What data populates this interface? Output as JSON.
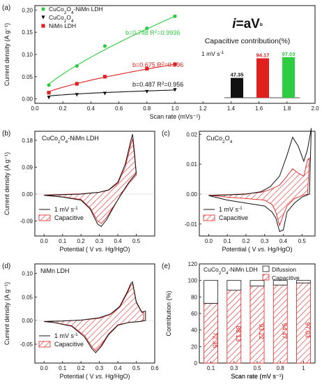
{
  "figure": {
    "colors": {
      "green": "#2ecc40",
      "red": "#e0201e",
      "black": "#111111",
      "hatch": "#e0201e"
    },
    "formula": {
      "main": "i=aV",
      "sup": "b"
    },
    "inset_title": "Capacitive contribution(%)",
    "inset_unit": "1 mV s⁻¹"
  },
  "chart_data": [
    {
      "id": "a",
      "panel_label": "(a)",
      "type": "scatter",
      "xlabel": "Scan rate (mVs⁻¹)",
      "ylabel": "Current density (A g⁻¹)",
      "xlim": [
        0.0,
        2.0
      ],
      "ylim": [
        -0.01,
        0.21
      ],
      "xticks": [
        0.0,
        0.2,
        0.4,
        0.6,
        0.8,
        1.0,
        1.2,
        1.4,
        1.6,
        1.8,
        2.0
      ],
      "xtick_labels": [
        "0.0",
        "0.2",
        "0.4",
        "0.6",
        "0.8",
        "1.0",
        "1.2",
        "1.4",
        "1.6",
        "1.8",
        "2.0"
      ],
      "yticks": [
        0.0,
        0.05,
        0.1,
        0.15,
        0.2
      ],
      "ytick_labels": [
        "0.00",
        "0.05",
        "0.10",
        "0.15",
        "0.20"
      ],
      "series": [
        {
          "name": "CuCo2O4-NiMn LDH",
          "color": "#2ecc40",
          "marker": "circle",
          "x": [
            0.1,
            0.3,
            0.5,
            0.8,
            1.0
          ],
          "y": [
            0.031,
            0.074,
            0.119,
            0.159,
            0.186
          ],
          "b": 0.748,
          "fit_label": "b=0.748 R²=0.9936"
        },
        {
          "name": "CuCo2O4",
          "color": "#111111",
          "marker": "triangle",
          "x": [
            0.1,
            0.3,
            0.5,
            0.8,
            1.0
          ],
          "y": [
            0.003,
            0.009,
            0.012,
            0.016,
            0.02
          ],
          "b": 0.487,
          "fit_label": "b=0.487 R²=0.956"
        },
        {
          "name": "NiMn LDH",
          "color": "#e0201e",
          "marker": "square",
          "x": [
            0.1,
            0.3,
            0.5,
            0.8,
            1.0
          ],
          "y": [
            0.014,
            0.034,
            0.05,
            0.068,
            0.078
          ],
          "b": 0.675,
          "fit_label": "b=0.675 R²=0.996"
        }
      ],
      "legend": [
        {
          "main": "CuCo",
          "s1": "2",
          "mid": "O",
          "s2": "4",
          "tail": "-NiMn LDH",
          "color": "#2ecc40",
          "marker": "circle"
        },
        {
          "main": "CuCo",
          "s1": "2",
          "mid": "O",
          "s2": "4",
          "tail": "",
          "color": "#111111",
          "marker": "triangle"
        },
        {
          "main": "NiMn LDH",
          "s1": "",
          "mid": "",
          "s2": "",
          "tail": "",
          "color": "#e0201e",
          "marker": "square"
        }
      ],
      "inset_bars": {
        "type": "bar",
        "values": [
          47.35,
          94.17,
          97.03
        ],
        "labels": [
          "47.35",
          "94.17",
          "97.03"
        ],
        "colors": [
          "#111111",
          "#e0201e",
          "#2ecc40"
        ],
        "label_colors": [
          "#111111",
          "#e0201e",
          "#2ecc40"
        ],
        "ylim": [
          0,
          100
        ]
      }
    },
    {
      "id": "b",
      "panel_label": "(b)",
      "type": "line",
      "title": "CuCo2O4-NiMn LDH",
      "xlabel": "Potential ( V vs. Hg/HgO)",
      "ylabel": "Current density (A g⁻¹)",
      "xlim": [
        -0.05,
        0.6
      ],
      "ylim": [
        -0.14,
        0.21
      ],
      "xticks": [
        0.0,
        0.1,
        0.2,
        0.3,
        0.4,
        0.5
      ],
      "xtick_labels": [
        "0.0",
        "0.1",
        "0.2",
        "0.3",
        "0.4",
        "0.5"
      ],
      "yticks": [
        -0.09,
        0.0,
        0.09,
        0.18
      ],
      "ytick_labels": [
        "-0.09",
        "0.00",
        "0.09",
        "0.18"
      ],
      "legend": [
        "1 mV s⁻¹",
        "Capacitive"
      ],
      "cv_total": {
        "forward": [
          [
            0.0,
            -0.004
          ],
          [
            0.1,
            -0.002
          ],
          [
            0.2,
            0.0
          ],
          [
            0.3,
            0.006
          ],
          [
            0.35,
            0.014
          ],
          [
            0.4,
            0.04
          ],
          [
            0.44,
            0.1
          ],
          [
            0.47,
            0.178
          ],
          [
            0.48,
            0.2
          ],
          [
            0.49,
            0.14
          ],
          [
            0.5,
            0.07
          ]
        ],
        "reverse": [
          [
            0.5,
            0.07
          ],
          [
            0.46,
            0.04
          ],
          [
            0.42,
            0.002
          ],
          [
            0.38,
            -0.04
          ],
          [
            0.34,
            -0.085
          ],
          [
            0.31,
            -0.108
          ],
          [
            0.29,
            -0.1
          ],
          [
            0.25,
            -0.05
          ],
          [
            0.2,
            -0.02
          ],
          [
            0.1,
            -0.01
          ],
          [
            0.0,
            -0.004
          ]
        ]
      },
      "cv_capacitive": {
        "forward": [
          [
            0.0,
            -0.003
          ],
          [
            0.1,
            -0.001
          ],
          [
            0.2,
            0.001
          ],
          [
            0.3,
            0.006
          ],
          [
            0.35,
            0.013
          ],
          [
            0.4,
            0.036
          ],
          [
            0.44,
            0.09
          ],
          [
            0.47,
            0.165
          ],
          [
            0.48,
            0.185
          ],
          [
            0.49,
            0.13
          ],
          [
            0.5,
            0.064
          ]
        ],
        "reverse": [
          [
            0.5,
            0.064
          ],
          [
            0.46,
            0.036
          ],
          [
            0.42,
            0.0
          ],
          [
            0.38,
            -0.038
          ],
          [
            0.34,
            -0.078
          ],
          [
            0.31,
            -0.098
          ],
          [
            0.29,
            -0.09
          ],
          [
            0.25,
            -0.046
          ],
          [
            0.2,
            -0.018
          ],
          [
            0.1,
            -0.009
          ],
          [
            0.0,
            -0.003
          ]
        ]
      }
    },
    {
      "id": "c",
      "panel_label": "(c)",
      "type": "line",
      "title": "CuCo2O4",
      "xlabel": "Potential ( V vs. Hg/HgO)",
      "ylabel": "",
      "xlim": [
        -0.05,
        0.57
      ],
      "ylim": [
        -0.014,
        0.021
      ],
      "xticks": [
        0.0,
        0.1,
        0.2,
        0.3,
        0.4,
        0.5
      ],
      "xtick_labels": [
        "0.0",
        "0.1",
        "0.2",
        "0.3",
        "0.4",
        "0.5"
      ],
      "yticks": [
        -0.01,
        0.0,
        0.01,
        0.02
      ],
      "ytick_labels": [
        "-0.01",
        "0.00",
        "0.01",
        "0.02"
      ],
      "legend": [
        "1 mV s⁻¹",
        "Capacitive"
      ],
      "cv_total": {
        "forward": [
          [
            0.0,
            -0.0005
          ],
          [
            0.1,
            -0.0003
          ],
          [
            0.2,
            0.0
          ],
          [
            0.28,
            0.0008
          ],
          [
            0.33,
            0.0025
          ],
          [
            0.38,
            0.006
          ],
          [
            0.42,
            0.013
          ],
          [
            0.45,
            0.019
          ],
          [
            0.48,
            0.016
          ],
          [
            0.51,
            0.011
          ],
          [
            0.53,
            0.015
          ],
          [
            0.55,
            0.022
          ]
        ],
        "reverse": [
          [
            0.55,
            0.022
          ],
          [
            0.54,
            0.0
          ],
          [
            0.5,
            -0.001
          ],
          [
            0.46,
            -0.003
          ],
          [
            0.42,
            -0.006
          ],
          [
            0.4,
            -0.012
          ],
          [
            0.38,
            -0.0125
          ],
          [
            0.36,
            -0.008
          ],
          [
            0.34,
            -0.006
          ],
          [
            0.3,
            -0.004
          ],
          [
            0.2,
            -0.003
          ],
          [
            0.1,
            -0.002
          ],
          [
            0.0,
            -0.0005
          ]
        ]
      },
      "cv_capacitive": {
        "forward": [
          [
            0.0,
            -0.0004
          ],
          [
            0.1,
            -0.0002
          ],
          [
            0.2,
            0.0001
          ],
          [
            0.28,
            0.0006
          ],
          [
            0.33,
            0.0015
          ],
          [
            0.38,
            0.003
          ],
          [
            0.42,
            0.006
          ],
          [
            0.45,
            0.0085
          ],
          [
            0.48,
            0.007
          ],
          [
            0.51,
            0.006
          ],
          [
            0.53,
            0.0115
          ],
          [
            0.54,
            0.012
          ]
        ],
        "reverse": [
          [
            0.54,
            0.012
          ],
          [
            0.53,
            0.0
          ],
          [
            0.5,
            -0.0005
          ],
          [
            0.46,
            -0.0015
          ],
          [
            0.42,
            -0.004
          ],
          [
            0.4,
            -0.007
          ],
          [
            0.38,
            -0.0105
          ],
          [
            0.36,
            -0.006
          ],
          [
            0.34,
            -0.0035
          ],
          [
            0.3,
            -0.002
          ],
          [
            0.2,
            -0.0015
          ],
          [
            0.1,
            -0.001
          ],
          [
            0.0,
            -0.0004
          ]
        ]
      }
    },
    {
      "id": "d",
      "panel_label": "(d)",
      "type": "line",
      "title": "NiMn LDH",
      "xlabel": "Potential ( V vs. Hg/HgO)",
      "ylabel": "Current density (A g⁻¹)",
      "xlim": [
        -0.05,
        0.6
      ],
      "ylim": [
        -0.09,
        0.12
      ],
      "xticks": [
        0.0,
        0.1,
        0.2,
        0.3,
        0.4,
        0.5,
        0.6
      ],
      "xtick_labels": [
        "0.0",
        "0.1",
        "0.2",
        "0.3",
        "0.4",
        "0.5",
        "0.6"
      ],
      "yticks": [
        -0.05,
        0.0,
        0.05,
        0.1
      ],
      "ytick_labels": [
        "-0.05",
        "0.00",
        "0.05",
        "0.10"
      ],
      "legend": [
        "1 mV s⁻¹",
        "Capacitive"
      ],
      "cv_total": {
        "forward": [
          [
            0.0,
            -0.002
          ],
          [
            0.1,
            -0.001
          ],
          [
            0.2,
            0.001
          ],
          [
            0.3,
            0.006
          ],
          [
            0.36,
            0.014
          ],
          [
            0.41,
            0.03
          ],
          [
            0.45,
            0.06
          ],
          [
            0.47,
            0.078
          ],
          [
            0.48,
            0.082
          ],
          [
            0.5,
            0.04
          ],
          [
            0.53,
            0.018
          ],
          [
            0.55,
            0.02
          ]
        ],
        "reverse": [
          [
            0.55,
            0.02
          ],
          [
            0.55,
            0.0
          ],
          [
            0.52,
            -0.002
          ],
          [
            0.46,
            -0.004
          ],
          [
            0.4,
            -0.01
          ],
          [
            0.35,
            -0.03
          ],
          [
            0.31,
            -0.055
          ],
          [
            0.28,
            -0.068
          ],
          [
            0.26,
            -0.06
          ],
          [
            0.22,
            -0.035
          ],
          [
            0.15,
            -0.012
          ],
          [
            0.05,
            -0.004
          ],
          [
            0.0,
            -0.002
          ]
        ]
      },
      "cv_capacitive": {
        "forward": [
          [
            0.0,
            -0.002
          ],
          [
            0.1,
            -0.001
          ],
          [
            0.2,
            0.001
          ],
          [
            0.3,
            0.005
          ],
          [
            0.36,
            0.013
          ],
          [
            0.41,
            0.028
          ],
          [
            0.45,
            0.057
          ],
          [
            0.47,
            0.074
          ],
          [
            0.48,
            0.078
          ],
          [
            0.5,
            0.038
          ],
          [
            0.53,
            0.017
          ],
          [
            0.54,
            0.018
          ]
        ],
        "reverse": [
          [
            0.54,
            0.018
          ],
          [
            0.54,
            0.0
          ],
          [
            0.52,
            -0.002
          ],
          [
            0.46,
            -0.004
          ],
          [
            0.4,
            -0.009
          ],
          [
            0.35,
            -0.028
          ],
          [
            0.31,
            -0.052
          ],
          [
            0.28,
            -0.064
          ],
          [
            0.26,
            -0.056
          ],
          [
            0.22,
            -0.032
          ],
          [
            0.15,
            -0.011
          ],
          [
            0.05,
            -0.004
          ],
          [
            0.0,
            -0.002
          ]
        ]
      }
    },
    {
      "id": "e",
      "panel_label": "(e)",
      "type": "bar",
      "title": "CuCo2O4-NiMn LDH",
      "xlabel": "Scan rate (mV s⁻¹)",
      "ylabel": "Contribution (%)",
      "categories": [
        "0.1",
        "0.3",
        "0.5",
        "0.8",
        "1"
      ],
      "ylim": [
        0,
        120
      ],
      "yticks": [
        0,
        20,
        40,
        60,
        80,
        100,
        120
      ],
      "ytick_labels": [
        "0",
        "20",
        "40",
        "60",
        "80",
        "100",
        "120"
      ],
      "series": [
        {
          "name": "Capacitive",
          "values": [
            72.35,
            88.13,
            93.22,
            94.47,
            97.03
          ]
        },
        {
          "name": "Difussion",
          "values": [
            27.65,
            11.87,
            6.78,
            5.53,
            2.97
          ]
        }
      ],
      "bar_labels": [
        "72.35",
        "88.13",
        "93.22",
        "94.47",
        "97.03"
      ],
      "legend": [
        "Difussion",
        "Capacitive"
      ]
    }
  ]
}
